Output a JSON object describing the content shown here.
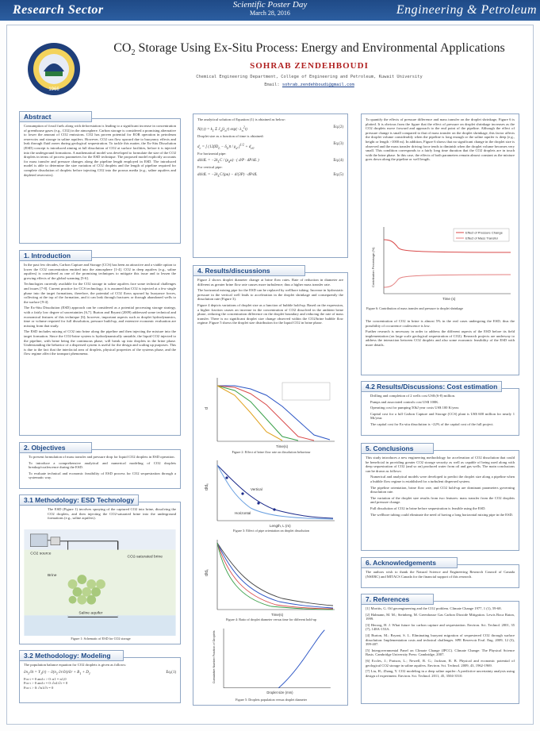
{
  "header": {
    "left": "Research Sector",
    "center_line1": "Scientific Poster Day",
    "center_line2": "March 28, 2016",
    "right": "Engineering & Petroleum"
  },
  "logo": {
    "text": "1966"
  },
  "title": {
    "pre": "CO",
    "sub": "2",
    "post": " Storage Using Ex-Situ Process: Energy and Environmental Applications"
  },
  "author": "SOHRAB ZENDEHBOUDI",
  "affiliation": "Chemical Engineering Department, College of Engineering and Petroleum, Kuwait University",
  "email_label": "Email:",
  "email": "sohrab.zendehboudi@gmail.com",
  "abstract": {
    "heading": "Abstract",
    "text": "Consumption of fossil fuels along with deforestation is leading to a significant increase in concentration of greenhouse gases (e.g., CO2) in the atmosphere. Carbon storage is considered a promising alternative to lower the amount of CO2 emissions. CO2 has proven potential for EOR operation in petroleum reservoirs and storage in saline aquifers. However, CO2 can flow upward due to buoyancy effects and leak through fluid zones during geological sequestration. To tackle this matter, the Ex-Situ Dissolution (ESD) concept is introduced aiming at full dissolution of CO2 at surface facilities, before it is injected into the underground formations. A mathematical model was developed to formulate the size of the CO2 droplets in terms of process parameters for the ESD technique. The proposed model explicitly accounts for mass transfer and pressure changes along the pipeline length employed in ESD. The introduced model is able to determine the size variation of CO2 droplets and the length of pipeline required for complete dissolution of droplets before injecting CO2 into the porous media (e.g., saline aquifers and depleted reservoirs)."
  },
  "introduction": {
    "heading": "1. Introduction",
    "p1": "In the past few decades, Carbon Capture and Storage (CCS) has been an attractive and a viable option to lower the CO2 concentration emitted into the atmosphere [1-4]. CO2 in deep aquifers (e.g., saline aquifers) is considered as one of the promising techniques to mitigate this issue and to lessen the growing effects of the global warming [5-6].",
    "p2": "Technologies currently available for the CO2 storage in saline aquifers face some technical challenges and issues [7-8]. Current practice for CCS technology, it is assumed that CO2 is injected at a few single phase into the target formations, therefore, the potential of CO2 flows upward by buoyance forces, collecting at the top of the formation, and it can leak through fractures or through abandoned wells to the surface [9-4].",
    "p3": "The Ex-Situ Dissolution (ESD) approach can be considered as a potential processing storage strategy, with a fairly low degree of uncertainties [6,7]. Burton and Bryant (2009) addressed some technical and economical features of this technique [6]; however, important aspects such as droplet hydrodynamics, time or volume required for full dissolution, pressure build-up, and extensive economic evaluation are missing from that study.",
    "p4": "The ESD includes mixing of CO2 into brine along the pipeline and then injecting the mixture into the target formation. Since the CO2-brine system is hydrodynamically unstable, the liquid CO2 injected to the pipeline, with brine being the continuous phase, will break up into droplets in the brine phase. Understanding the behavior of a dispersed system is useful for the design and scaling up purposes. This is due to the fact that the interfacial area of droplets, physical properties of the systems phase, and the flow regime affect the transport phenomena."
  },
  "objectives": {
    "heading": "2. Objectives",
    "items": [
      "To present formulation of mass transfer and pressure drop for liquid CO2 droplets in ESD operation.",
      "To introduce a comprehensive analytical and numerical modeling of CO2 droplets breakup/coalescence during the ESD.",
      "To evaluate technical and economic feasibility of ESD process for CO2 sequestration through a systematic way."
    ]
  },
  "methodology_esd": {
    "heading": "3.1 Methodology: ESD Technology",
    "text": "The ESD (Figure 1) involves spraying of the captured CO2 into brine, dissolving the CO2 droplets, and then injecting the CO2-saturated brine into the underground formations (e.g., saline aquifers).",
    "fig_labels": {
      "co2_source": "CO2 source",
      "brine": "Brine",
      "co2_saturated": "CO2-saturated brine",
      "saline_aquifer": "Saline aquifer"
    },
    "caption": "Figure 1: Schematic of ESD for CO2 storage"
  },
  "methodology_model": {
    "heading": "3.2 Methodology: Modeling",
    "text": "The population balance equation for CO2 droplets is given as follows:",
    "bc": [
      "For t = 0 and r > 0:  n1 = n1,0",
      "For t > 0 and r = 0:  ∂n1/∂r = 0",
      "For t > 0:  ∂n1/∂t = 0"
    ]
  },
  "analytical": {
    "intro": "The analytical solution of Equation (1) is obtained as below:",
    "eq2": "Eq.(2)",
    "droplet_size": "Droplet size as a function of time is obtained:",
    "eq3": "Eq.(3)",
    "horizontal": "For horizontal pipe:",
    "eq4": "Eq.(4)",
    "vertical": "For vertical pipe:",
    "eq5": "Eq.(5)"
  },
  "results": {
    "heading": "4. Results/discussions",
    "p1": "Figure 2 shows droplet diameter change at brine flow rates. Rate of reduction in diameter are different as greater brine flow rate causes more turbulence; thus a higher mass transfer rate.",
    "p2": "The horizontal mixing pipe for the ESD can be replaced by wellbore tubing. Increase in hydrostatic pressure in the vertical well leads to acceleration in the droplet shrinkage and consequently the dissolution rate (Figure 3).",
    "p3": "Figure 4 depicts variations of droplet size as a function of bubble hold-up. Based on the expression, a higher fraction causes an increase in the concentration of CO2 dissolved in the ambient brine phase, reducing the concentration difference on the droplet boundary and reducing the rate of mass transfer. There is no significant droplet size change observed within the CO2/brine bubble flow regime. Figure 5 shows the droplet size distribution for the liquid CO2 in brine phase.",
    "fig2_caption": "Figure 2: Effect of brine flow rate on dissolution behaviour",
    "fig3_caption": "Figure 3: Effect of pipe orientation on droplet dissolution",
    "fig4_caption": "Figure 4: Ratio of droplet diameter versus time for different hold-up",
    "fig5_caption": "Figure 5: Droplets population versus droplet diameter",
    "fig2_xlabel": "Time(s)",
    "fig3_xlabel": "Length, L (m)",
    "fig3_series": [
      "Vertical",
      "Horizontal"
    ],
    "fig4_xlabel": "Time(s)",
    "fig5_xlabel": "Droplet size (mm)",
    "fig5_ylabel": "Cumulative Number Fraction of Droplets"
  },
  "fig6": {
    "intro": "To quantify the effects of pressure difference and mass transfer on the droplet shrinkage, Figure 6 is plotted. It is obvious from the figure that the effect of pressure on droplet shrinkage increases as the CO2 droplets move forward and approach to the end point of the pipeline. Although the effect of pressure change is small compared to that of mass transfer on the droplet shrinkage, this factor affects the droplet volume considerably when the pipeline is long enough or the saline aquifer is deep (e.g., height or length >1000 m). In addition, Figure 6 shows that no significant change in the droplet size is observed and the mass transfer driving force tends to diminish when the droplet volume becomes very small. This condition corresponds to a fairly long time duration that the CO2 droplets are in touch with the brine phase. In this case, the effects of both parameters remain almost constant as the mixture goes down along the pipeline or well length.",
    "legend": [
      "Effect of Pressure Change",
      "Effect of Mass Transfer"
    ],
    "xlabel": "Time (s)",
    "ylabel": "Contribution Percentage (%)",
    "caption": "Figure 6: Contribution of mass transfer and pressure to droplet shrinkage",
    "after1": "The concentration of CO2 in brine is almost 5% in the real cases undergoing the ESD; thus the possibility of occurrence coalescence is low.",
    "after2": "Further research is necessary in order to address the different aspects of the ESD before its field implementation (on large scale geological sequestration of CO2). Research projects are underway to address the interaction between CO2 droplets and also some economic feasibility of the ESD with more details."
  },
  "cost": {
    "heading": "4.2 Results/Discussions: Cost estimation",
    "items": [
      "Drilling and completion of 2 wells cost US$ (6-8) million.",
      "Pumps and associated controls cost US$ 100K.",
      "Operating cost for pumping 50kJ year costs US$ 100 K/year.",
      "Capital cost for a full Carbon Capture and Storage (CCS) plant is US$ 600 million for nearly 1 Mt/year.",
      "The capital cost for Ex-situ dissolution is ~22% of the capital cost of the full project."
    ]
  },
  "conclusions": {
    "heading": "5. Conclusions",
    "intro": "This study introduces a new engineering methodology for acceleration of CO2 dissolution that could be beneficial in providing greater CO2 storage security as well as capable of being used along with deep sequestration of CO2 (and so on) produced water from oil and gas wells. The main conclusions can be drawn as follows:",
    "items": [
      "Numerical and analytical models were developed to predict the droplet size along a pipeline when a bubble flow regime is established for a turbulent dispersed system.",
      "The pipeline orientation, brine flow rate, and CO2 hold-up are dominant parameters governing dissolution rate.",
      "The variation of the droplet size results from two features: mass transfer from the CO2 droplets and pressure change.",
      "Full dissolution of CO2 in brine before sequestration is feasible using the ESD.",
      "The wellbore tubing could eliminate the need of having a long horizontal mixing pipe in the ESD."
    ]
  },
  "acknowledgements": {
    "heading": "6. Acknowledgements",
    "text": "The authors wish to thank the Natural Science and Engineering Research Council of Canada (NSERC) and MITACS Canada for the financial support of this research."
  },
  "references": {
    "heading": "7. References",
    "items": [
      "[1] Moritis, G. Oil geoengineering and the CO2 problem. Climate Change 1977, 1 (1), 59-68.",
      "[2] Halmann, M. M.; Steinberg, M. Greenhouse Gas Carbon Dioxide Mitigation. Lewis Boca Raton, 1999.",
      "[3] Herzog, H. J. What future for carbon capture and sequestration. Environ. Sci. Technol. 2001, 35 (7), 148A-153A.",
      "[4] Burton, M.; Bryant, S. L. Eliminating buoyant migration of sequestered CO2 through surface dissolution: Implementation costs and technical challenges. SPE Reservoir Eval. Eng. 2009, 12 (3), 399-407.",
      "[5] Intergovernmental Panel on Climate Change (IPCC). Climate Change: The Physical Science Basis. Cambridge University Press: Cambridge, 2007.",
      "[6] Eccles, J.; Pratson, L.; Newell, R. G.; Jackson, R. B. Physical and economic potential of geological CO2 storage in saline aquifers. Environ. Sci. Technol. 2009, 43, 1962-1969.",
      "[7] Liu, H.; Zhang, Y. CO2 modeling in a deep saline aquifer: A predictive uncertainty analysis using design of experiment. Environ. Sci. Technol. 2011, 45, 3504-3510."
    ]
  }
}
